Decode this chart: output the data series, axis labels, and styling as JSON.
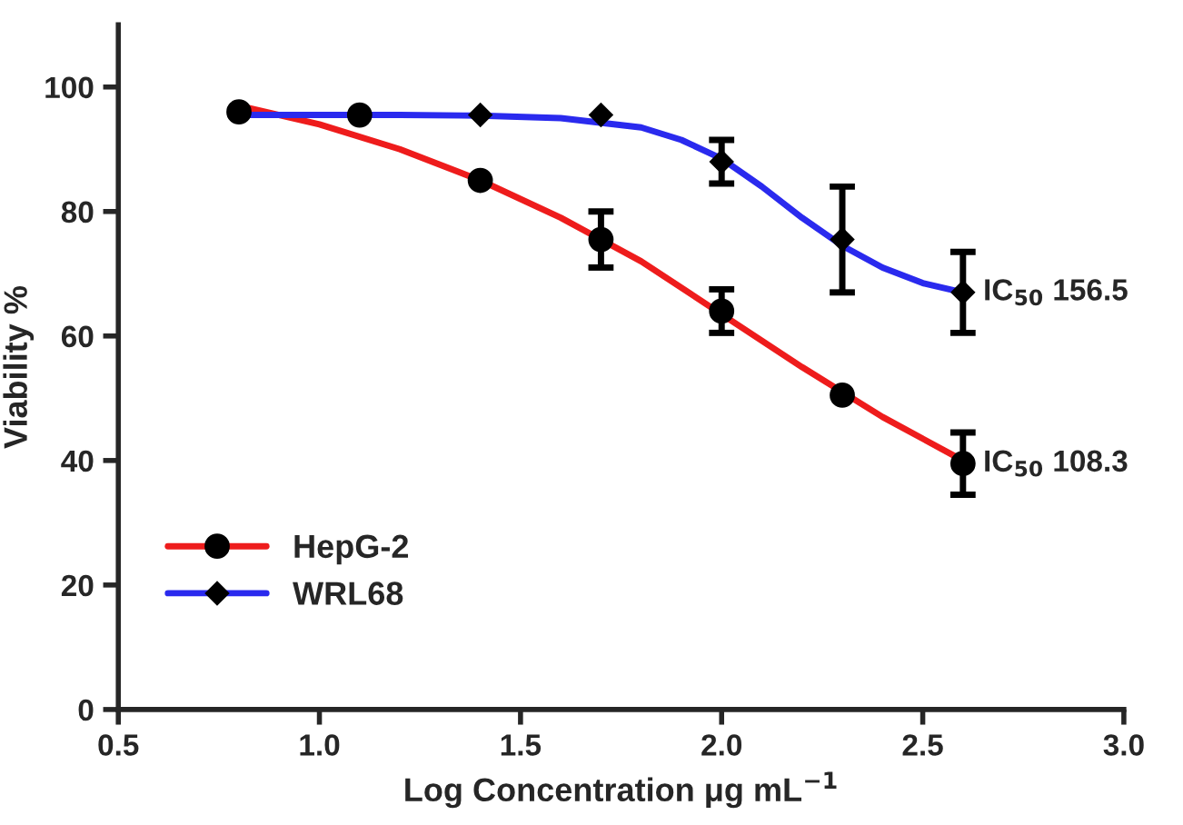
{
  "chart_data": {
    "type": "line",
    "xlabel": "Log Concentration μg mL$^{−1}$",
    "ylabel": "Viability %",
    "xlim": [
      0.5,
      3.0
    ],
    "xticks": [
      {
        "value": 0.5,
        "label": "0.5"
      },
      {
        "value": 1.0,
        "label": "1.0"
      },
      {
        "value": 1.5,
        "label": "1.5"
      },
      {
        "value": 2.0,
        "label": "2.0"
      },
      {
        "value": 2.5,
        "label": "2.5"
      },
      {
        "value": 3.0,
        "label": "3.0"
      }
    ],
    "ylim": [
      0,
      110
    ],
    "yticks": [
      0,
      20,
      40,
      60,
      80,
      100
    ],
    "grid": false,
    "legend": "bottom left",
    "series": [
      {
        "name": "HepG-2",
        "color": "#ee1c1c",
        "marker": "none",
        "x": [
          0.8,
          1.0,
          1.2,
          1.4,
          1.6,
          1.8,
          2.0,
          2.2,
          2.4,
          2.6
        ],
        "values": [
          97,
          94,
          90,
          85,
          79,
          72,
          63.5,
          55,
          47,
          40
        ]
      },
      {
        "type": "scatter",
        "color": "#000000",
        "marker": "circle",
        "x": [
          0.8,
          1.1,
          1.4,
          1.7,
          2.0,
          2.3,
          2.6
        ],
        "values": [
          96,
          95.5,
          85,
          75.5,
          64,
          50.5,
          39.5
        ],
        "errors": [
          null,
          null,
          null,
          4.5,
          3.5,
          null,
          5
        ]
      },
      {
        "name": "WRL68",
        "color": "#2a2aee",
        "marker": "none",
        "x": [
          0.8,
          1.0,
          1.2,
          1.4,
          1.6,
          1.8,
          1.9,
          2.0,
          2.1,
          2.2,
          2.3,
          2.4,
          2.5,
          2.6
        ],
        "values": [
          95.5,
          95.5,
          95.5,
          95.4,
          95,
          93.5,
          91.5,
          88.5,
          84,
          79,
          74.5,
          71,
          68.5,
          67
        ]
      },
      {
        "type": "scatter",
        "color": "#000000",
        "marker": "diamond",
        "x": [
          1.4,
          1.7,
          2.0,
          2.3,
          2.6
        ],
        "values": [
          95.5,
          95.5,
          88,
          75.5,
          67
        ],
        "errors": [
          null,
          null,
          3.5,
          8.5,
          6.5
        ]
      }
    ],
    "annotations": [
      {
        "text": "IC$_{50}$ 156.5",
        "x": 2.6,
        "y": 67
      },
      {
        "text": "IC$_{50}$ 108.3",
        "x": 2.6,
        "y": 39.5
      }
    ]
  }
}
